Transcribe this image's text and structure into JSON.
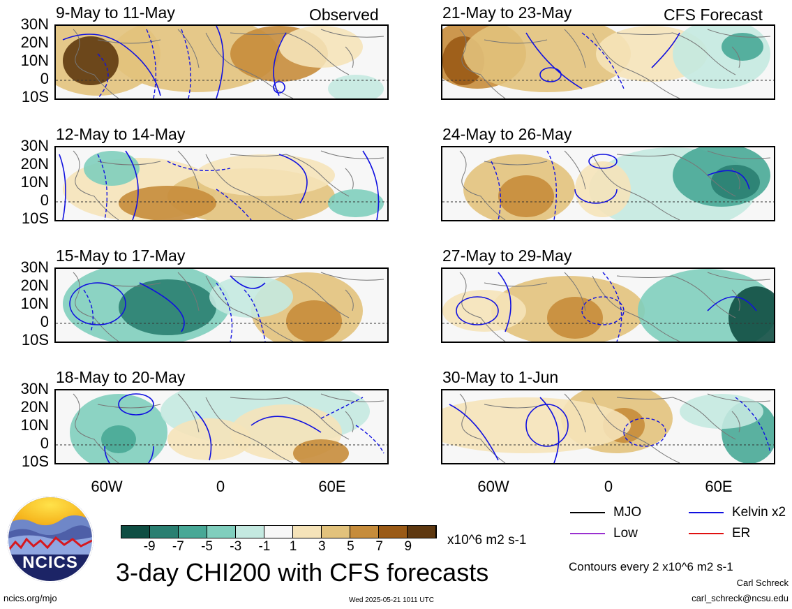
{
  "headers": {
    "left": "Observed",
    "right": "CFS Forecast"
  },
  "panels": [
    {
      "title": "9-May to 11-May",
      "col": 0,
      "row": 0
    },
    {
      "title": "12-May to 14-May",
      "col": 0,
      "row": 1
    },
    {
      "title": "15-May to 17-May",
      "col": 0,
      "row": 2
    },
    {
      "title": "18-May to 20-May",
      "col": 0,
      "row": 3
    },
    {
      "title": "21-May to 23-May",
      "col": 1,
      "row": 0
    },
    {
      "title": "24-May to 26-May",
      "col": 1,
      "row": 1
    },
    {
      "title": "27-May to 29-May",
      "col": 1,
      "row": 2
    },
    {
      "title": "30-May to 1-Jun",
      "col": 1,
      "row": 3
    }
  ],
  "lat_labels": [
    "30N",
    "20N",
    "10N",
    "0",
    "10S"
  ],
  "lon_labels": [
    "60W",
    "0",
    "60E"
  ],
  "colorbar": {
    "colors": [
      "#0f4e43",
      "#2a7f71",
      "#48a896",
      "#80cebd",
      "#c4e9e0",
      "#f7f7f7",
      "#f5e3b9",
      "#e2c27c",
      "#c68c3b",
      "#9a5a16",
      "#5e3810"
    ],
    "labels": [
      "-9",
      "-7",
      "-5",
      "-3",
      "-1",
      "1",
      "3",
      "5",
      "7",
      "9"
    ],
    "units": "x10^6 m2 s-1"
  },
  "legend": {
    "items": [
      {
        "label": "MJO",
        "color": "#000000"
      },
      {
        "label": "Kelvin x2",
        "color": "#1010e0"
      },
      {
        "label": "Low",
        "color": "#9a30d0"
      },
      {
        "label": "ER",
        "color": "#e01010"
      }
    ],
    "contours_note": "Contours every 2 x10^6 m2 s-1"
  },
  "main_title": "3-day CHI200 with CFS forecasts",
  "logo_text": "NCICS",
  "footer": {
    "url": "ncics.org/mjo",
    "timestamp": "Wed 2025-05-21 1011 UTC",
    "author": "Carl Schreck",
    "email": "carl_schreck@ncsu.edu"
  }
}
